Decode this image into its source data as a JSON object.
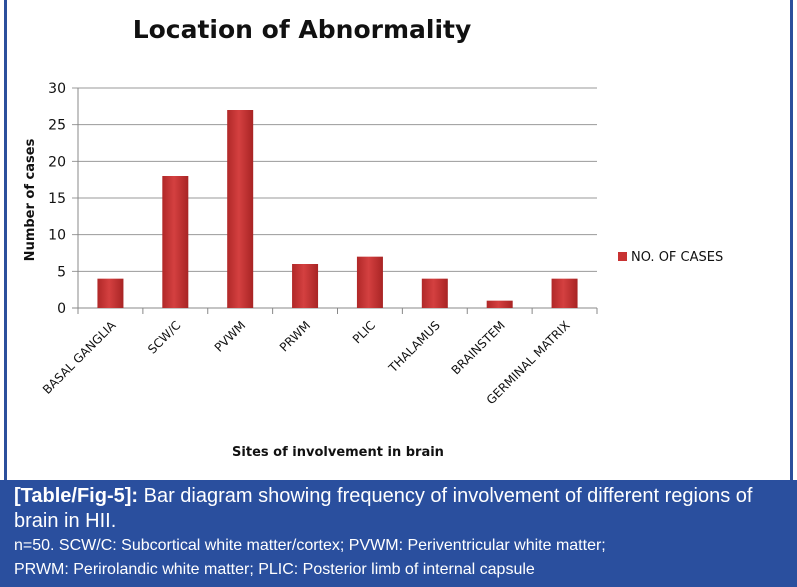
{
  "chart_data": {
    "type": "bar",
    "title": "Location of Abnormality",
    "xlabel": "Sites of involvement in brain",
    "ylabel": "Number of cases",
    "categories": [
      "BASAL GANGLIA",
      "SCW/C",
      "PVWM",
      "PRWM",
      "PLIC",
      "THALAMUS",
      "BRAINSTEM",
      "GERMINAL MATRIX"
    ],
    "series": [
      {
        "name": "NO. OF CASES",
        "values": [
          4,
          18,
          27,
          6,
          7,
          4,
          1,
          4
        ],
        "color": "#c83232"
      }
    ],
    "ylim": [
      0,
      30
    ],
    "yticks": [
      0,
      5,
      10,
      15,
      20,
      25,
      30
    ],
    "grid": true,
    "legend": "right"
  },
  "caption": {
    "label": "[Table/Fig-5]:",
    "text": " Bar diagram showing frequency of involvement of different regions of brain in HII.",
    "note1": "n=50. SCW/C: Subcortical white matter/cortex; PVWM: Periventricular white matter;",
    "note2": "PRWM: Perirolandic white matter; PLIC: Posterior limb of internal capsule"
  }
}
